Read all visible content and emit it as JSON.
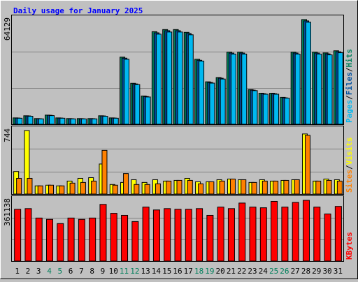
{
  "chart_data": [
    {
      "type": "bar",
      "title": "Daily usage for January 2025",
      "categories": [
        "1",
        "2",
        "3",
        "4",
        "5",
        "6",
        "7",
        "8",
        "9",
        "10",
        "11",
        "12",
        "13",
        "14",
        "15",
        "16",
        "17",
        "18",
        "19",
        "20",
        "21",
        "22",
        "23",
        "24",
        "25",
        "26",
        "27",
        "28",
        "29",
        "30",
        "31"
      ],
      "category_colors": [
        "#000000",
        "#000000",
        "#000000",
        "#00805c",
        "#00805c",
        "#000000",
        "#000000",
        "#000000",
        "#000000",
        "#000000",
        "#00805c",
        "#00805c",
        "#000000",
        "#000000",
        "#000000",
        "#000000",
        "#000000",
        "#00805c",
        "#00805c",
        "#000000",
        "#000000",
        "#000000",
        "#000000",
        "#000000",
        "#00805c",
        "#00805c",
        "#000000",
        "#000000",
        "#000000",
        "#000000",
        "#000000"
      ],
      "separator": "/",
      "ylim": [
        0,
        64129
      ],
      "yticks": [
        64129
      ],
      "series": [
        {
          "name": "Hits",
          "color": "#00805c",
          "values": [
            3900,
            5200,
            3500,
            5600,
            3900,
            3500,
            3500,
            3500,
            5200,
            3900,
            41100,
            25100,
            17300,
            56700,
            58000,
            58000,
            56300,
            39800,
            26000,
            28600,
            44200,
            44200,
            21200,
            19000,
            19000,
            16500,
            44200,
            64129,
            44200,
            43700,
            45000
          ]
        },
        {
          "name": "Files",
          "color": "#0050a0",
          "values": [
            3800,
            5100,
            3400,
            5500,
            3800,
            3400,
            3400,
            3400,
            5100,
            3800,
            40500,
            24700,
            17000,
            56000,
            57300,
            57300,
            55600,
            39200,
            25600,
            28200,
            43600,
            43600,
            20900,
            18700,
            18700,
            16200,
            43600,
            63300,
            43600,
            43100,
            44400
          ]
        },
        {
          "name": "Pages",
          "color": "#00b8f0",
          "values": [
            3700,
            4900,
            3300,
            5300,
            3700,
            3300,
            3300,
            3300,
            4900,
            3700,
            39800,
            24300,
            16700,
            55200,
            56500,
            56500,
            54800,
            38700,
            25200,
            27700,
            43000,
            43000,
            20600,
            18400,
            18400,
            16000,
            43000,
            62500,
            43000,
            42500,
            43800
          ]
        }
      ]
    },
    {
      "type": "bar",
      "ylim": [
        0,
        744
      ],
      "yticks": [
        744
      ],
      "series": [
        {
          "name": "Visits",
          "color": "#ffff00",
          "values": [
            264,
            744,
            96,
            104,
            96,
            152,
            184,
            192,
            352,
            112,
            136,
            168,
            136,
            168,
            152,
            160,
            184,
            144,
            144,
            168,
            176,
            168,
            136,
            168,
            152,
            160,
            168,
            704,
            152,
            176,
            168
          ]
        },
        {
          "name": "Sites",
          "color": "#ff8000",
          "values": [
            184,
            184,
            96,
            104,
            96,
            128,
            136,
            152,
            512,
            104,
            240,
            112,
            112,
            120,
            152,
            160,
            160,
            120,
            144,
            152,
            176,
            168,
            136,
            152,
            152,
            160,
            168,
            688,
            152,
            160,
            152
          ]
        }
      ]
    },
    {
      "type": "bar",
      "ylim": [
        0,
        361138
      ],
      "yticks": [
        361138
      ],
      "series": [
        {
          "name": "KBytes",
          "color": "#ff0000",
          "values": [
            308000,
            312000,
            256000,
            248000,
            223000,
            256000,
            248000,
            256000,
            337000,
            284000,
            272000,
            235000,
            321000,
            304000,
            312000,
            308000,
            308000,
            312000,
            272000,
            321000,
            312000,
            345000,
            321000,
            317000,
            355000,
            321000,
            349000,
            361138,
            321000,
            280000,
            325000
          ]
        }
      ]
    }
  ]
}
